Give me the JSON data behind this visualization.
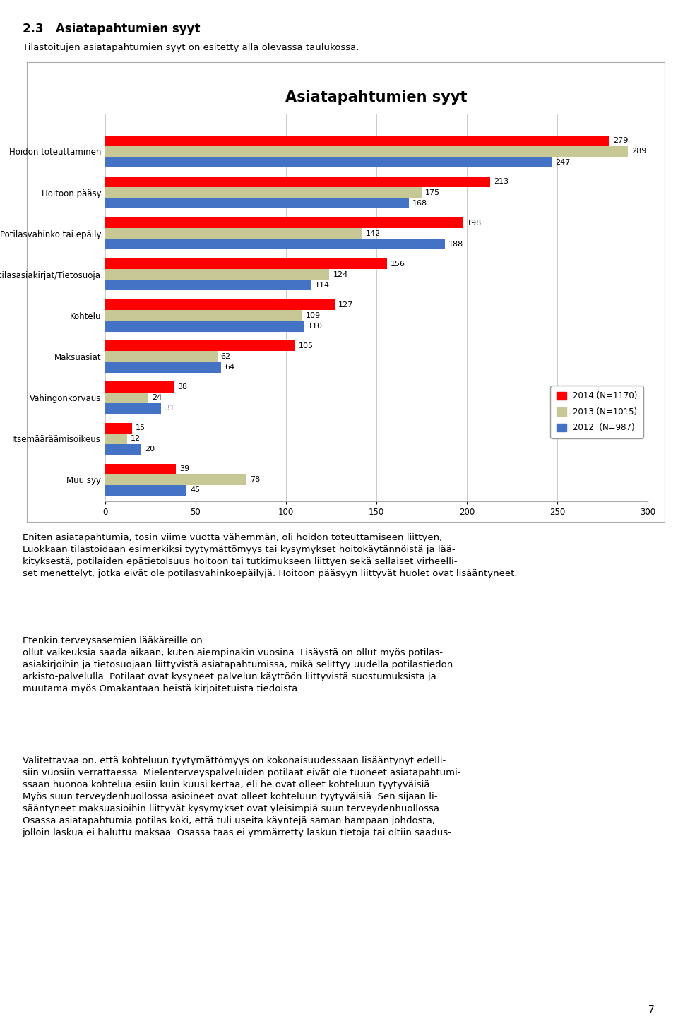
{
  "title": "Asiatapahtumien syyt",
  "categories": [
    "Hoidon toteuttaminen",
    "Hoitoon pääsy",
    "Potilasvahinko tai epäily",
    "Potilasasiakirjat/Tietosuoja",
    "Kohtelu",
    "Maksuasiat",
    "Vahingonkorvaus",
    "Itsemääräämisoikeus",
    "Muu syy"
  ],
  "series_2014": [
    279,
    213,
    198,
    156,
    127,
    105,
    38,
    15,
    39
  ],
  "series_2013": [
    289,
    175,
    142,
    124,
    109,
    62,
    24,
    12,
    78
  ],
  "series_2012": [
    247,
    168,
    188,
    114,
    110,
    64,
    31,
    20,
    45
  ],
  "color_2014": "#FF0000",
  "color_2013": "#C8C896",
  "color_2012": "#4472C4",
  "legend_2014": "2014 (N=1170)",
  "legend_2013": "2013 (N=1015)",
  "legend_2012": "2012  (N=987)",
  "xlim": [
    0,
    300
  ],
  "xticks": [
    0,
    50,
    100,
    150,
    200,
    250,
    300
  ],
  "bar_height": 0.26,
  "title_fontsize": 15,
  "label_fontsize": 8.5,
  "value_fontsize": 8,
  "background_color": "#FFFFFF",
  "header_text": "2.3   Asiatapahtumien syyt",
  "subheader_text": "Tilastoitujen asiatapahtumien syyt on esitetty alla olevassa taulukossa.",
  "para1": "Eniten asiatapahtumia, tosin viime vuotta vähemmän, oli hoidon toteuttamiseen liittyen,\nLuokkaan tilastoidaan esimerkiksi tyytymättömyys tai kysymykset hoitokäytännöistä ja lää-\nkityksestä, potilaiden epätietoisuus hoitoon tai tutkimukseen liittyen sekä sellaiset virheelli-\nset menettelyt, jotka eivät ole potilasvahinkoepäilyjä.",
  "para1b": "Hoitoon pääsyyn liittyvät huolet ovat lisääntyneet.",
  "para2": "Etenkin terveysasemien lääkäreille on\nollut vaikeuksia saada aikaan, kuten aiempinakin vuosina. Lisäystä on ollut myös potilas-\nasiakirjoihin ja tietosuojaan liittyvistä asiatapahtumissa, mikä selittyy uudella potilastiedon\narkisto-palvelulla. Potilaat ovat kysyneet palvelun käyttöön liittyvistä suostumuksista ja\nmuutama myös Omakantaan heistä kirjoitetuista tiedoista.",
  "para3": "Valitettavaa on, että kohteluun tyytymättömyys on kokonaisuudessaan lisääntynyt edelli-\nsiin vuosiin verrattaessa. Mielenterveyspalveluiden potilaat eivät ole tuoneet asiatapahtumi-\nssaan huonoa kohtelua esiin kuin kuusi kertaa, eli he ovat olleet kohteluun tyytyväisiä.\nMyös suun terveydenhuollossa asioineet ovat olleet kohteluun tyytyväisiä. Sen sijaan li-\nsääntyneet maksuasioihin liittyvät kysymykset ovat yleisimpiä suun terveydenhuollossa.\nOsassa asiatapahtumia potilas koki, että tuli useita käyntejä saman hampaan johdosta,\njolloin laskua ei haluttu maksaa. Osassa taas ei ymmärretty laskun tietoja tai oltiin saadus-",
  "page_num": "7"
}
